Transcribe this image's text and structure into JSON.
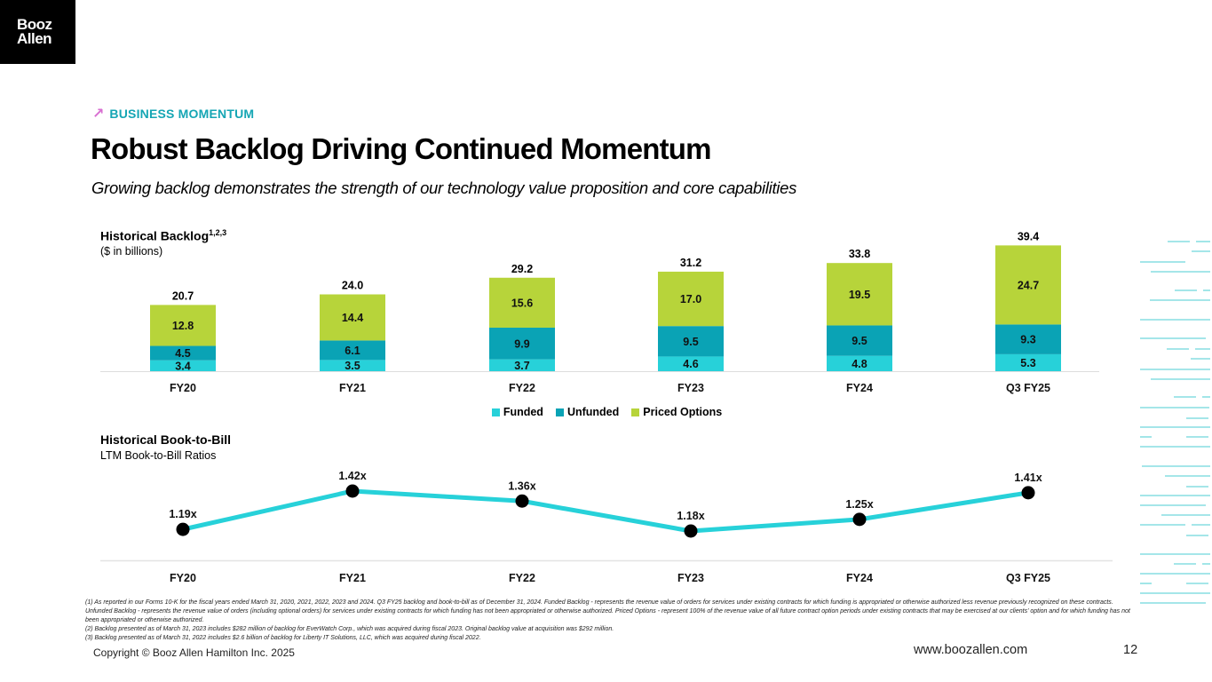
{
  "logo": {
    "line1": "Booz",
    "line2": "Allen"
  },
  "header": {
    "kicker_icon": "trend-arrow-icon",
    "kicker": "BUSINESS MOMENTUM",
    "title": "Robust Backlog Driving Continued Momentum",
    "subtitle": "Growing backlog demonstrates the strength of our technology value proposition and core capabilities"
  },
  "backlog_section": {
    "title": "Historical Backlog",
    "superscript": "1,2,3",
    "subtitle": "($ in billions)"
  },
  "book_to_bill_section": {
    "title": "Historical Book-to-Bill",
    "subtitle": "LTM Book-to-Bill Ratios"
  },
  "colors": {
    "funded": "#27d1d9",
    "unfunded": "#0aa3b5",
    "priced_options": "#b7d43a",
    "line": "#27d1d9",
    "marker": "#000000",
    "accent": "#15a6b4",
    "arrow": "#d86fd1"
  },
  "chart_data": [
    {
      "type": "bar",
      "stacked": true,
      "title": "Historical Backlog",
      "subtitle": "($ in billions)",
      "categories": [
        "FY20",
        "FY21",
        "FY22",
        "FY23",
        "FY24",
        "Q3 FY25"
      ],
      "series": [
        {
          "name": "Funded",
          "values": [
            3.4,
            3.5,
            3.7,
            4.6,
            4.8,
            5.3
          ]
        },
        {
          "name": "Unfunded",
          "values": [
            4.5,
            6.1,
            9.9,
            9.5,
            9.5,
            9.3
          ]
        },
        {
          "name": "Priced Options",
          "values": [
            12.8,
            14.4,
            15.6,
            17.0,
            19.5,
            24.7
          ]
        }
      ],
      "totals": [
        "20.7",
        "24.0",
        "29.2",
        "31.2",
        "33.8",
        "39.4"
      ],
      "value_labels": [
        [
          "3.4",
          "3.5",
          "3.7",
          "4.6",
          "4.8",
          "5.3"
        ],
        [
          "4.5",
          "6.1",
          "9.9",
          "9.5",
          "9.5",
          "9.3"
        ],
        [
          "12.8",
          "14.4",
          "15.6",
          "17.0",
          "19.5",
          "24.7"
        ]
      ],
      "xlabel": "",
      "ylabel": "",
      "ylim": [
        0,
        40
      ],
      "grid": false,
      "legend": "bottom"
    },
    {
      "type": "line",
      "title": "Historical Book-to-Bill",
      "subtitle": "LTM Book-to-Bill Ratios",
      "categories": [
        "FY20",
        "FY21",
        "FY22",
        "FY23",
        "FY24",
        "Q3 FY25"
      ],
      "series": [
        {
          "name": "Book-to-Bill",
          "values": [
            1.19,
            1.42,
            1.36,
            1.18,
            1.25,
            1.41
          ]
        }
      ],
      "value_labels": [
        "1.19x",
        "1.42x",
        "1.36x",
        "1.18x",
        "1.25x",
        "1.41x"
      ],
      "xlabel": "",
      "ylabel": "",
      "ylim": [
        1.0,
        1.5
      ],
      "grid": false,
      "legend": "none"
    }
  ],
  "footnotes": [
    "(1) As reported in our Forms 10-K for the fiscal years ended March 31, 2020, 2021, 2022, 2023 and 2024. Q3 FY25 backlog and book-to-bill as of December 31, 2024. Funded Backlog - represents the revenue value of orders for services under existing contracts for which funding is appropriated or otherwise authorized less revenue previously recognized on these contracts. Unfunded Backlog - represents the revenue value of orders (including optional orders) for services under existing contracts for which funding has not been appropriated or otherwise authorized. Priced Options -  represent 100% of the revenue value of all future contract option periods under existing contracts that may be exercised at our clients' option and for which funding has not been appropriated or otherwise authorized.",
    "(2) Backlog presented as of March 31, 2023 includes $282 million of backlog for EverWatch Corp., which was acquired during fiscal 2023. Original backlog value at acquisition was $292 million.",
    "(3) Backlog presented as of March 31, 2022 includes $2.6 billion of backlog for Liberty IT Solutions, LLC, which was acquired during fiscal 2022."
  ],
  "footer": {
    "copyright": "Copyright © Booz Allen Hamilton Inc. 2025",
    "url": "www.boozallen.com",
    "page": "12"
  }
}
